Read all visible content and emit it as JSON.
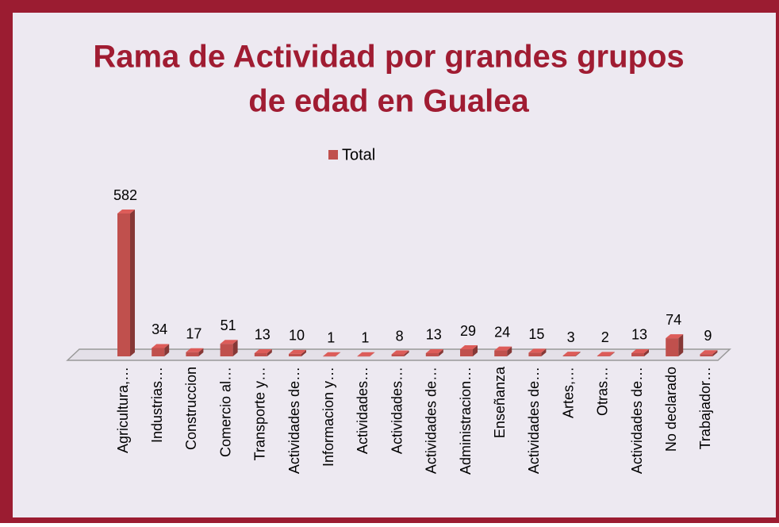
{
  "chart_data": {
    "type": "bar3d",
    "title": "Rama de Actividad por grandes grupos de edad en Gualea",
    "title_lines": [
      "Rama de Actividad por grandes grupos",
      "de edad en Gualea"
    ],
    "categories": [
      "Agricultura,…",
      "Industrias…",
      "Construccion",
      "Comercio al…",
      "Transporte y…",
      "Actividades de…",
      "Informacion y…",
      "Actividades…",
      "Actividades…",
      "Actividades de…",
      "Administracion…",
      "Enseñanza",
      "Actividades de…",
      "Artes,…",
      "Otras…",
      "Actividades de…",
      "No declarado",
      "Trabajador…"
    ],
    "series": [
      {
        "name": "Total",
        "color": "#c0504d",
        "values": [
          582,
          34,
          17,
          51,
          13,
          10,
          1,
          1,
          8,
          13,
          29,
          24,
          15,
          3,
          2,
          13,
          74,
          9
        ]
      }
    ],
    "legend": "top"
  }
}
